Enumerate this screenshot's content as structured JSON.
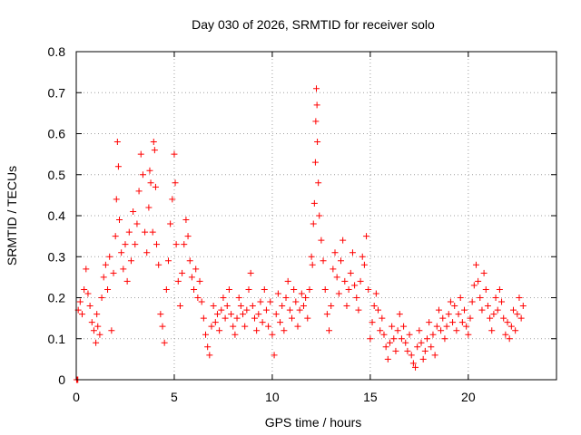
{
  "chart_data": {
    "type": "scatter",
    "title": "Day 030 of 2026, SRMTID for receiver solo",
    "xlabel": "GPS time / hours",
    "ylabel": "SRMTID / TECUs",
    "xlim": [
      0,
      24.5
    ],
    "ylim": [
      0,
      0.8
    ],
    "xticks": [
      0,
      5,
      10,
      15,
      20
    ],
    "yticks": [
      0,
      0.1,
      0.2,
      0.3,
      0.4,
      0.5,
      0.6,
      0.7,
      0.8
    ],
    "xtick_labels": [
      "0",
      "5",
      "10",
      "15",
      "20"
    ],
    "ytick_labels": [
      "0",
      "0.1",
      "0.2",
      "0.3",
      "0.4",
      "0.5",
      "0.6",
      "0.7",
      "0.8"
    ],
    "grid": true,
    "marker": "+",
    "color": "#ff0000",
    "series": [
      {
        "name": "SRMTID",
        "points": [
          [
            0.02,
            0.0
          ],
          [
            0.05,
            0.0
          ],
          [
            0.08,
            0.0
          ],
          [
            0.1,
            0.17
          ],
          [
            0.2,
            0.19
          ],
          [
            0.3,
            0.16
          ],
          [
            0.4,
            0.22
          ],
          [
            0.5,
            0.27
          ],
          [
            0.6,
            0.21
          ],
          [
            0.7,
            0.18
          ],
          [
            0.8,
            0.14
          ],
          [
            0.9,
            0.12
          ],
          [
            1.0,
            0.09
          ],
          [
            1.05,
            0.16
          ],
          [
            1.1,
            0.13
          ],
          [
            1.2,
            0.11
          ],
          [
            1.3,
            0.2
          ],
          [
            1.4,
            0.25
          ],
          [
            1.5,
            0.28
          ],
          [
            1.6,
            0.22
          ],
          [
            1.7,
            0.3
          ],
          [
            1.8,
            0.12
          ],
          [
            1.9,
            0.26
          ],
          [
            2.0,
            0.35
          ],
          [
            2.05,
            0.44
          ],
          [
            2.1,
            0.58
          ],
          [
            2.15,
            0.52
          ],
          [
            2.2,
            0.39
          ],
          [
            2.3,
            0.31
          ],
          [
            2.4,
            0.27
          ],
          [
            2.5,
            0.33
          ],
          [
            2.6,
            0.24
          ],
          [
            2.7,
            0.36
          ],
          [
            2.8,
            0.29
          ],
          [
            2.9,
            0.41
          ],
          [
            3.0,
            0.33
          ],
          [
            3.1,
            0.38
          ],
          [
            3.2,
            0.46
          ],
          [
            3.3,
            0.55
          ],
          [
            3.4,
            0.5
          ],
          [
            3.5,
            0.36
          ],
          [
            3.6,
            0.31
          ],
          [
            3.7,
            0.42
          ],
          [
            3.75,
            0.51
          ],
          [
            3.8,
            0.48
          ],
          [
            3.9,
            0.36
          ],
          [
            3.95,
            0.58
          ],
          [
            4.0,
            0.56
          ],
          [
            4.05,
            0.47
          ],
          [
            4.1,
            0.33
          ],
          [
            4.2,
            0.28
          ],
          [
            4.3,
            0.16
          ],
          [
            4.4,
            0.13
          ],
          [
            4.5,
            0.09
          ],
          [
            4.6,
            0.22
          ],
          [
            4.7,
            0.29
          ],
          [
            4.8,
            0.38
          ],
          [
            4.9,
            0.44
          ],
          [
            5.0,
            0.55
          ],
          [
            5.05,
            0.48
          ],
          [
            5.1,
            0.33
          ],
          [
            5.2,
            0.24
          ],
          [
            5.3,
            0.18
          ],
          [
            5.4,
            0.26
          ],
          [
            5.5,
            0.33
          ],
          [
            5.6,
            0.39
          ],
          [
            5.7,
            0.35
          ],
          [
            5.8,
            0.29
          ],
          [
            5.9,
            0.25
          ],
          [
            6.0,
            0.22
          ],
          [
            6.1,
            0.27
          ],
          [
            6.2,
            0.2
          ],
          [
            6.3,
            0.24
          ],
          [
            6.4,
            0.19
          ],
          [
            6.5,
            0.15
          ],
          [
            6.6,
            0.11
          ],
          [
            6.7,
            0.08
          ],
          [
            6.8,
            0.06
          ],
          [
            6.9,
            0.13
          ],
          [
            7.0,
            0.18
          ],
          [
            7.1,
            0.14
          ],
          [
            7.2,
            0.16
          ],
          [
            7.3,
            0.12
          ],
          [
            7.4,
            0.17
          ],
          [
            7.5,
            0.2
          ],
          [
            7.6,
            0.15
          ],
          [
            7.7,
            0.18
          ],
          [
            7.8,
            0.22
          ],
          [
            7.9,
            0.16
          ],
          [
            8.0,
            0.13
          ],
          [
            8.1,
            0.11
          ],
          [
            8.2,
            0.15
          ],
          [
            8.3,
            0.2
          ],
          [
            8.4,
            0.18
          ],
          [
            8.5,
            0.16
          ],
          [
            8.6,
            0.13
          ],
          [
            8.7,
            0.17
          ],
          [
            8.8,
            0.22
          ],
          [
            8.9,
            0.26
          ],
          [
            9.0,
            0.18
          ],
          [
            9.1,
            0.15
          ],
          [
            9.2,
            0.12
          ],
          [
            9.3,
            0.16
          ],
          [
            9.4,
            0.19
          ],
          [
            9.5,
            0.14
          ],
          [
            9.6,
            0.22
          ],
          [
            9.7,
            0.17
          ],
          [
            9.8,
            0.13
          ],
          [
            9.9,
            0.19
          ],
          [
            10.0,
            0.11
          ],
          [
            10.1,
            0.06
          ],
          [
            10.2,
            0.16
          ],
          [
            10.3,
            0.21
          ],
          [
            10.4,
            0.14
          ],
          [
            10.5,
            0.18
          ],
          [
            10.6,
            0.12
          ],
          [
            10.7,
            0.2
          ],
          [
            10.8,
            0.24
          ],
          [
            10.9,
            0.17
          ],
          [
            11.0,
            0.15
          ],
          [
            11.1,
            0.22
          ],
          [
            11.2,
            0.19
          ],
          [
            11.3,
            0.13
          ],
          [
            11.4,
            0.17
          ],
          [
            11.5,
            0.21
          ],
          [
            11.6,
            0.18
          ],
          [
            11.7,
            0.2
          ],
          [
            11.8,
            0.15
          ],
          [
            11.9,
            0.22
          ],
          [
            12.0,
            0.3
          ],
          [
            12.05,
            0.28
          ],
          [
            12.1,
            0.38
          ],
          [
            12.15,
            0.43
          ],
          [
            12.2,
            0.53
          ],
          [
            12.22,
            0.63
          ],
          [
            12.25,
            0.71
          ],
          [
            12.28,
            0.67
          ],
          [
            12.3,
            0.58
          ],
          [
            12.35,
            0.48
          ],
          [
            12.4,
            0.4
          ],
          [
            12.5,
            0.34
          ],
          [
            12.6,
            0.29
          ],
          [
            12.7,
            0.22
          ],
          [
            12.8,
            0.16
          ],
          [
            12.9,
            0.12
          ],
          [
            13.0,
            0.18
          ],
          [
            13.1,
            0.27
          ],
          [
            13.2,
            0.31
          ],
          [
            13.3,
            0.25
          ],
          [
            13.4,
            0.21
          ],
          [
            13.5,
            0.29
          ],
          [
            13.6,
            0.34
          ],
          [
            13.7,
            0.24
          ],
          [
            13.8,
            0.18
          ],
          [
            13.9,
            0.22
          ],
          [
            14.0,
            0.26
          ],
          [
            14.1,
            0.31
          ],
          [
            14.2,
            0.23
          ],
          [
            14.3,
            0.2
          ],
          [
            14.4,
            0.17
          ],
          [
            14.5,
            0.24
          ],
          [
            14.6,
            0.3
          ],
          [
            14.7,
            0.28
          ],
          [
            14.8,
            0.35
          ],
          [
            14.9,
            0.22
          ],
          [
            15.0,
            0.1
          ],
          [
            15.1,
            0.14
          ],
          [
            15.2,
            0.18
          ],
          [
            15.3,
            0.21
          ],
          [
            15.4,
            0.17
          ],
          [
            15.5,
            0.12
          ],
          [
            15.6,
            0.15
          ],
          [
            15.7,
            0.11
          ],
          [
            15.8,
            0.08
          ],
          [
            15.9,
            0.05
          ],
          [
            16.0,
            0.09
          ],
          [
            16.1,
            0.13
          ],
          [
            16.2,
            0.1
          ],
          [
            16.3,
            0.07
          ],
          [
            16.4,
            0.12
          ],
          [
            16.5,
            0.16
          ],
          [
            16.6,
            0.1
          ],
          [
            16.7,
            0.13
          ],
          [
            16.8,
            0.09
          ],
          [
            16.9,
            0.07
          ],
          [
            17.0,
            0.11
          ],
          [
            17.1,
            0.06
          ],
          [
            17.2,
            0.04
          ],
          [
            17.3,
            0.03
          ],
          [
            17.4,
            0.08
          ],
          [
            17.5,
            0.12
          ],
          [
            17.6,
            0.09
          ],
          [
            17.7,
            0.05
          ],
          [
            17.8,
            0.07
          ],
          [
            17.9,
            0.1
          ],
          [
            18.0,
            0.14
          ],
          [
            18.1,
            0.08
          ],
          [
            18.2,
            0.11
          ],
          [
            18.3,
            0.06
          ],
          [
            18.4,
            0.13
          ],
          [
            18.5,
            0.17
          ],
          [
            18.6,
            0.12
          ],
          [
            18.7,
            0.15
          ],
          [
            18.8,
            0.1
          ],
          [
            18.9,
            0.13
          ],
          [
            19.0,
            0.16
          ],
          [
            19.1,
            0.19
          ],
          [
            19.2,
            0.14
          ],
          [
            19.3,
            0.18
          ],
          [
            19.4,
            0.12
          ],
          [
            19.5,
            0.16
          ],
          [
            19.6,
            0.2
          ],
          [
            19.7,
            0.14
          ],
          [
            19.8,
            0.17
          ],
          [
            19.9,
            0.13
          ],
          [
            20.0,
            0.11
          ],
          [
            20.1,
            0.15
          ],
          [
            20.2,
            0.19
          ],
          [
            20.3,
            0.23
          ],
          [
            20.4,
            0.28
          ],
          [
            20.5,
            0.24
          ],
          [
            20.6,
            0.2
          ],
          [
            20.7,
            0.17
          ],
          [
            20.8,
            0.26
          ],
          [
            20.9,
            0.22
          ],
          [
            21.0,
            0.18
          ],
          [
            21.1,
            0.15
          ],
          [
            21.2,
            0.12
          ],
          [
            21.3,
            0.16
          ],
          [
            21.4,
            0.2
          ],
          [
            21.5,
            0.17
          ],
          [
            21.6,
            0.22
          ],
          [
            21.7,
            0.19
          ],
          [
            21.8,
            0.15
          ],
          [
            21.9,
            0.11
          ],
          [
            22.0,
            0.14
          ],
          [
            22.1,
            0.1
          ],
          [
            22.2,
            0.13
          ],
          [
            22.3,
            0.17
          ],
          [
            22.4,
            0.12
          ],
          [
            22.5,
            0.16
          ],
          [
            22.6,
            0.2
          ],
          [
            22.7,
            0.15
          ],
          [
            22.8,
            0.18
          ]
        ]
      }
    ]
  }
}
